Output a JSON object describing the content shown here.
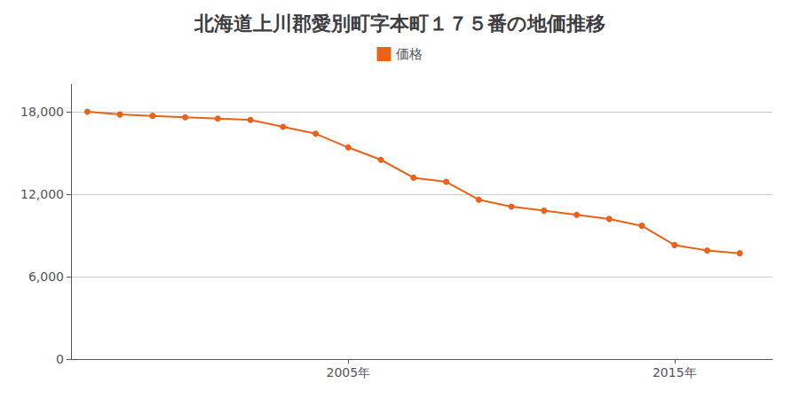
{
  "chart_data": {
    "type": "line",
    "title": "北海道上川郡愛別町字本町１７５番の地価推移",
    "x": [
      1997,
      1998,
      1999,
      2000,
      2001,
      2002,
      2003,
      2004,
      2005,
      2006,
      2007,
      2008,
      2009,
      2010,
      2011,
      2012,
      2013,
      2014,
      2015,
      2016,
      2017
    ],
    "series": [
      {
        "name": "価格",
        "color": "#e8621a",
        "marker": "circle",
        "values": [
          18000,
          17800,
          17700,
          17600,
          17500,
          17400,
          16900,
          16400,
          15400,
          14500,
          13200,
          12900,
          11600,
          11100,
          10800,
          10500,
          10200,
          9700,
          8300,
          7900,
          7700
        ]
      }
    ],
    "xlim": [
      1996.5,
      2018
    ],
    "xticks": [
      {
        "value": 2005,
        "label": "2005年"
      },
      {
        "value": 2015,
        "label": "2015年"
      }
    ],
    "ylim": [
      0,
      20000
    ],
    "yticks": [
      0,
      {
        "value": 6000,
        "label": "6,000"
      },
      {
        "value": 12000,
        "label": "12,000"
      },
      {
        "value": 18000,
        "label": "18,000"
      }
    ],
    "grid": true,
    "legend": "top"
  }
}
